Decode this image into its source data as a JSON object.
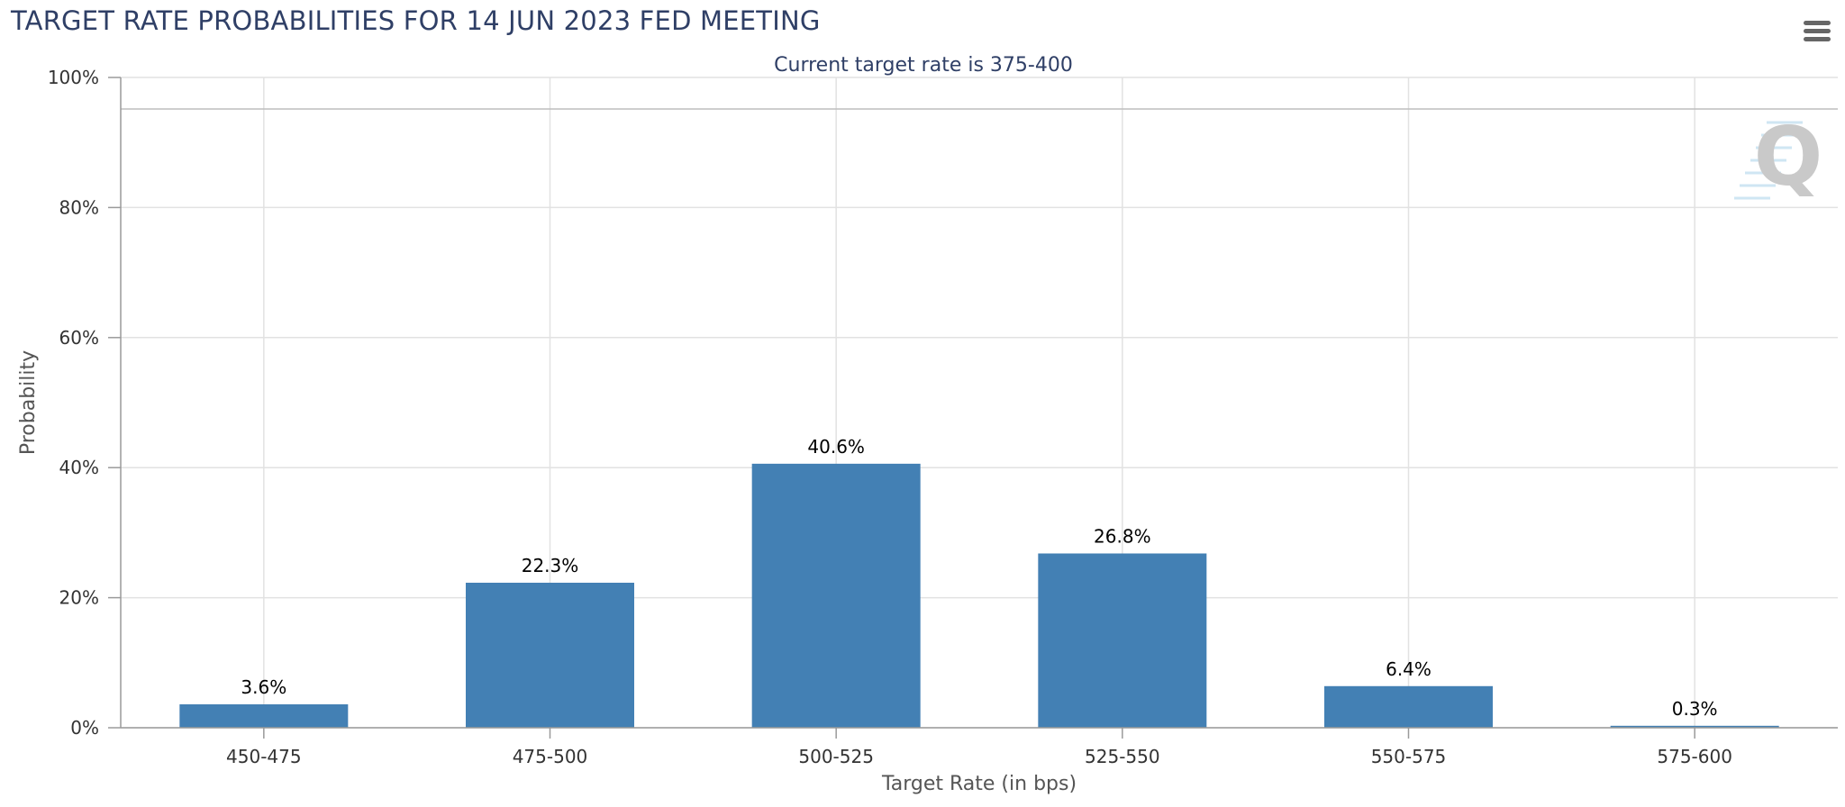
{
  "header": {
    "title": "TARGET RATE PROBABILITIES FOR 14 JUN 2023 FED MEETING"
  },
  "menu": {
    "icon": "hamburger-menu-icon"
  },
  "watermark": {
    "icon": "q-logo-icon",
    "text": "Q"
  },
  "chart_data": {
    "type": "bar",
    "title": "",
    "subtitle": "Current target rate is 375-400",
    "xlabel": "Target Rate (in bps)",
    "ylabel": "Probability",
    "categories": [
      "450-475",
      "475-500",
      "500-525",
      "525-550",
      "550-575",
      "575-600"
    ],
    "values": [
      3.6,
      22.3,
      40.6,
      26.8,
      6.4,
      0.3
    ],
    "data_labels": [
      "3.6%",
      "22.3%",
      "40.6%",
      "26.8%",
      "6.4%",
      "0.3%"
    ],
    "ylim": [
      0,
      100
    ],
    "yticks": [
      0,
      20,
      40,
      60,
      80,
      100
    ],
    "ytick_labels": [
      "0%",
      "20%",
      "40%",
      "60%",
      "80%",
      "100%"
    ],
    "grid": true,
    "colors": {
      "bar": "#4380b4",
      "grid": "#e2e2e2",
      "axis": "#9a9a9a",
      "title": "#2f3f66"
    }
  }
}
